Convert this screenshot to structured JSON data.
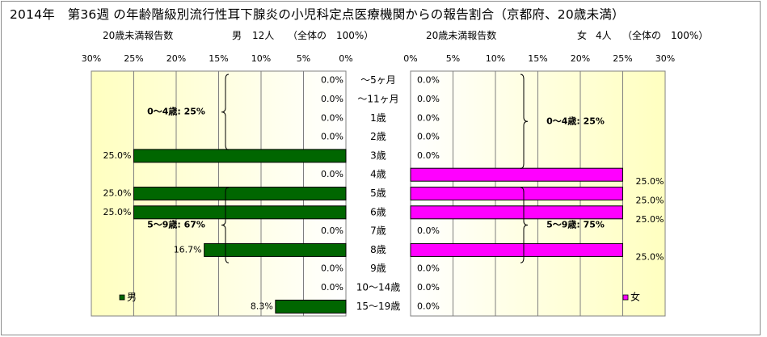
{
  "title": "2014年　第36週 の年齢階級別流行性耳下腺炎の小児科定点医療機関からの報告割合（京都府、20歳未満）",
  "male_header": {
    "label": "20歳未満報告数",
    "sex": "男",
    "count": "12人",
    "note": "（全体の　100%）"
  },
  "female_header": {
    "label": "20歳未満報告数",
    "sex": "女",
    "count": "4人",
    "note": "（全体の　100%）"
  },
  "colors": {
    "male_bar": "#006600",
    "female_bar": "#ff00ff",
    "plot_bg_edge": "#ffffc0",
    "plot_bg_center": "#ffffff"
  },
  "chart_data": [
    {
      "type": "bar",
      "orientation": "horizontal",
      "series": [
        {
          "name": "男",
          "values": [
            0.0,
            0.0,
            0.0,
            0.0,
            25.0,
            0.0,
            25.0,
            25.0,
            0.0,
            16.7,
            0.0,
            0.0,
            8.3
          ]
        }
      ],
      "categories": [
        "～5ヶ月",
        "～11ヶ月",
        "1歳",
        "2歳",
        "3歳",
        "4歳",
        "5歳",
        "6歳",
        "7歳",
        "8歳",
        "9歳",
        "10～14歳",
        "15～19歳"
      ],
      "value_labels": [
        "0.0%",
        "0.0%",
        "0.0%",
        "0.0%",
        "25.0%",
        "0.0%",
        "25.0%",
        "25.0%",
        "0.0%",
        "16.7%",
        "0.0%",
        "0.0%",
        "8.3%"
      ],
      "xlim": [
        0,
        30
      ],
      "x_ticks": [
        "30%",
        "25%",
        "20%",
        "15%",
        "10%",
        "5%",
        "0%"
      ],
      "direction": "reversed",
      "grid": true,
      "legend": "bottom-left",
      "annotations": [
        {
          "text": "0～4歳: 25%",
          "range": [
            "～5ヶ月",
            "3歳"
          ]
        },
        {
          "text": "5～9歳: 67%",
          "range": [
            "5歳",
            "9歳"
          ]
        }
      ]
    },
    {
      "type": "bar",
      "orientation": "horizontal",
      "series": [
        {
          "name": "女",
          "values": [
            0.0,
            0.0,
            0.0,
            0.0,
            0.0,
            25.0,
            25.0,
            25.0,
            0.0,
            25.0,
            0.0,
            0.0,
            0.0
          ]
        }
      ],
      "categories": [
        "～5ヶ月",
        "～11ヶ月",
        "1歳",
        "2歳",
        "3歳",
        "4歳",
        "5歳",
        "6歳",
        "7歳",
        "8歳",
        "9歳",
        "10～14歳",
        "15～19歳"
      ],
      "value_labels": [
        "0.0%",
        "0.0%",
        "0.0%",
        "0.0%",
        "0.0%",
        "25.0%",
        "25.0%",
        "25.0%",
        "0.0%",
        "25.0%",
        "0.0%",
        "0.0%",
        "0.0%"
      ],
      "xlim": [
        0,
        30
      ],
      "x_ticks": [
        "0%",
        "5%",
        "10%",
        "15%",
        "20%",
        "25%",
        "30%"
      ],
      "direction": "normal",
      "grid": true,
      "legend": "bottom-right",
      "annotations": [
        {
          "text": "0～4歳: 25%",
          "range": [
            "～5ヶ月",
            "4歳"
          ]
        },
        {
          "text": "5～9歳: 75%",
          "range": [
            "5歳",
            "9歳"
          ]
        }
      ]
    }
  ]
}
